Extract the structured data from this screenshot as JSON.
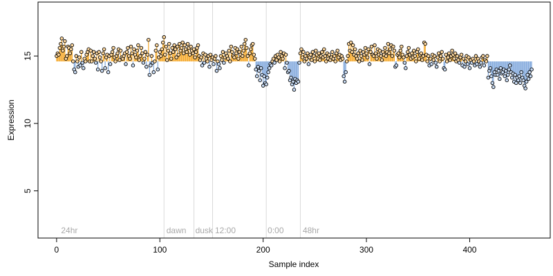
{
  "chart_data": {
    "type": "scatter",
    "title": "",
    "xlabel": "Sample index",
    "ylabel": "Expression",
    "xlim": [
      -18,
      478
    ],
    "ylim": [
      1.5,
      19
    ],
    "x_ticks": [
      0,
      100,
      200,
      300,
      400
    ],
    "y_ticks": [
      5,
      10,
      15
    ],
    "baseline": 14.6,
    "colors": {
      "above": "#f5a623",
      "below": "#7fa7dc",
      "point_fill_above": "#ffd9a0",
      "point_fill_below": "#c9dcf5",
      "vline": "#dadada",
      "annotation": "#a8a8a8"
    },
    "annotations": [
      {
        "x": 3,
        "label": "24hr"
      },
      {
        "x": 105,
        "label": "dawn"
      },
      {
        "x": 133,
        "label": "dusk"
      },
      {
        "x": 152,
        "label": "12:00"
      },
      {
        "x": 203,
        "label": "0:00"
      },
      {
        "x": 237,
        "label": "48hr"
      }
    ],
    "vlines": [
      104,
      133,
      151,
      203,
      236
    ],
    "values": [
      15.0,
      15.2,
      15.1,
      15.6,
      15.9,
      16.3,
      15.4,
      15.7,
      16.1,
      14.8,
      15.0,
      15.7,
      15.6,
      15.2,
      15.5,
      15.8,
      14.6,
      14.0,
      13.8,
      15.0,
      14.6,
      14.2,
      14.9,
      14.3,
      15.3,
      14.5,
      14.1,
      14.8,
      14.6,
      15.1,
      15.3,
      15.5,
      14.6,
      15.4,
      14.6,
      15.0,
      15.3,
      14.8,
      14.5,
      15.2,
      14.0,
      15.3,
      14.9,
      14.6,
      13.9,
      15.2,
      15.5,
      14.1,
      14.9,
      15.1,
      13.8,
      15.0,
      14.4,
      15.1,
      15.3,
      15.6,
      14.9,
      14.6,
      15.0,
      15.2,
      15.5,
      14.7,
      15.4,
      14.9,
      14.8,
      15.0,
      15.2,
      14.4,
      15.3,
      15.6,
      15.0,
      14.8,
      15.7,
      15.2,
      14.3,
      15.5,
      15.1,
      14.9,
      15.4,
      15.8,
      14.7,
      15.0,
      15.6,
      15.2,
      14.5,
      14.8,
      15.3,
      14.2,
      15.1,
      16.2,
      13.6,
      14.3,
      15.0,
      14.5,
      13.8,
      14.6,
      15.4,
      15.8,
      14.0,
      14.9,
      15.3,
      15.0,
      15.5,
      16.0,
      16.4,
      15.1,
      15.7,
      14.7,
      15.4,
      15.9,
      15.2,
      14.8,
      15.6,
      15.3,
      15.8,
      15.5,
      14.9,
      15.7,
      15.1,
      15.9,
      15.4,
      15.6,
      16.0,
      15.2,
      15.8,
      15.5,
      15.3,
      15.9,
      15.6,
      15.1,
      15.7,
      15.4,
      15.2,
      15.5,
      14.9,
      15.3,
      15.6,
      15.8,
      15.0,
      14.7,
      14.9,
      14.3,
      15.2,
      14.5,
      15.1,
      14.8,
      14.6,
      15.0,
      14.2,
      15.1,
      14.7,
      14.9,
      14.4,
      14.8,
      15.0,
      13.9,
      14.6,
      14.4,
      14.1,
      15.0,
      14.7,
      15.3,
      14.5,
      14.9,
      15.2,
      15.0,
      14.8,
      15.4,
      14.6,
      15.7,
      15.3,
      15.0,
      14.9,
      15.6,
      15.2,
      15.5,
      14.8,
      15.3,
      15.1,
      15.7,
      15.0,
      15.4,
      15.9,
      16.2,
      15.6,
      15.0,
      14.3,
      15.2,
      15.5,
      15.8,
      15.9,
      15.1,
      14.8,
      14.0,
      13.5,
      14.2,
      13.9,
      13.2,
      14.1,
      13.6,
      12.8,
      13.5,
      13.0,
      12.9,
      13.4,
      13.8,
      14.1,
      14.4,
      14.3,
      14.6,
      14.8,
      14.5,
      15.0,
      14.7,
      15.1,
      14.9,
      14.6,
      15.3,
      15.0,
      14.8,
      15.2,
      14.1,
      15.1,
      14.5,
      13.8,
      13.9,
      13.2,
      13.4,
      12.9,
      13.1,
      12.5,
      13.3,
      13.0,
      13.2,
      13.1,
      14.5,
      15.2,
      15.5,
      14.9,
      15.3,
      14.6,
      15.0,
      14.8,
      15.2,
      14.4,
      14.9,
      15.1,
      14.7,
      15.3,
      15.0,
      14.6,
      15.4,
      15.1,
      14.8,
      15.2,
      14.7,
      15.0,
      15.3,
      14.9,
      15.5,
      15.0,
      14.6,
      15.2,
      14.8,
      15.1,
      14.7,
      14.9,
      15.3,
      14.8,
      15.0,
      14.6,
      15.2,
      15.4,
      14.9,
      15.1,
      14.7,
      15.0,
      14.8,
      13.5,
      13.1,
      13.8,
      14.6,
      15.0,
      15.9,
      15.4,
      16.0,
      15.3,
      15.8,
      15.1,
      15.5,
      15.0,
      14.8,
      15.2,
      14.6,
      15.4,
      15.0,
      14.7,
      15.3,
      15.1,
      15.6,
      15.2,
      14.9,
      15.5,
      14.4,
      15.3,
      15.7,
      15.1,
      15.0,
      15.8,
      15.2,
      14.8,
      15.5,
      15.1,
      15.4,
      15.0,
      14.7,
      15.3,
      15.1,
      15.6,
      15.0,
      15.3,
      15.9,
      15.2,
      15.5,
      15.8,
      15.0,
      15.7,
      15.4,
      14.2,
      14.3,
      15.1,
      15.2,
      14.9,
      15.4,
      15.7,
      15.1,
      14.9,
      14.5,
      14.1,
      15.0,
      15.3,
      15.6,
      15.1,
      14.8,
      15.2,
      14.9,
      15.4,
      15.0,
      14.6,
      15.3,
      15.5,
      14.8,
      15.1,
      15.2,
      14.7,
      15.0,
      16.0,
      15.9,
      15.1,
      14.6,
      15.0,
      14.3,
      14.8,
      14.4,
      15.1,
      14.7,
      15.0,
      14.5,
      14.2,
      14.9,
      15.2,
      14.6,
      15.0,
      15.3,
      14.8,
      14.1,
      14.0,
      15.1,
      14.6,
      14.9,
      15.2,
      14.7,
      15.0,
      15.4,
      15.1,
      14.8,
      15.2,
      14.6,
      15.0,
      14.7,
      14.5,
      14.9,
      15.1,
      14.3,
      14.8,
      14.2,
      14.6,
      15.0,
      14.4,
      14.9,
      14.1,
      14.7,
      14.5,
      14.8,
      14.6,
      14.3,
      15.0,
      14.4,
      14.8,
      14.6,
      14.2,
      14.5,
      14.9,
      15.0,
      14.3,
      14.7,
      14.6,
      15.0,
      13.4,
      13.9,
      14.1,
      13.5,
      13.0,
      12.7,
      13.8,
      13.6,
      14.0,
      13.6,
      13.9,
      13.3,
      14.1,
      13.7,
      13.8,
      14.0,
      13.5,
      13.9,
      13.2,
      13.6,
      14.0,
      14.3,
      13.8,
      13.4,
      13.7,
      13.1,
      13.6,
      13.0,
      13.4,
      13.2,
      13.5,
      13.0,
      13.8,
      13.4,
      13.2,
      12.8,
      12.6,
      13.1,
      13.6,
      13.3,
      13.8,
      13.5,
      14.0
    ]
  }
}
